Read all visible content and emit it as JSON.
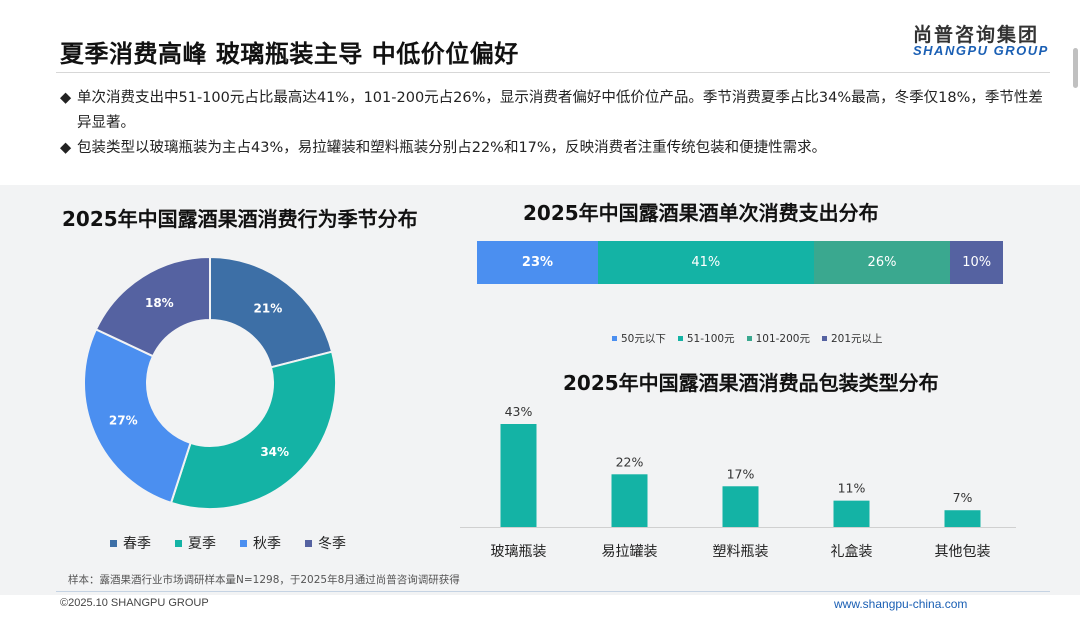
{
  "header": {
    "title": "夏季消费高峰 玻璃瓶装主导 中低价位偏好",
    "brand_cn": "尚普咨询集团",
    "brand_en": "SHANGPU GROUP"
  },
  "bullets": [
    {
      "symbol": "◆",
      "text": "单次消费支出中51-100元占比最高达41%，101-200元占26%，显示消费者偏好中低价位产品。季节消费夏季占比34%最高，冬季仅18%，季节性差异显著。"
    },
    {
      "symbol": "◆",
      "text": "包装类型以玻璃瓶装为主占43%，易拉罐装和塑料瓶装分别占22%和17%，反映消费者注重传统包装和便捷性需求。"
    }
  ],
  "chart_data": [
    {
      "type": "pie",
      "title": "2025年中国露酒果酒消费行为季节分布",
      "categories": [
        "春季",
        "夏季",
        "秋季",
        "冬季"
      ],
      "values": [
        21,
        34,
        27,
        18
      ],
      "labels": [
        "21%",
        "34%",
        "27%",
        "18%"
      ],
      "colors": [
        "#3d6fa6",
        "#14b3a5",
        "#4b8ff0",
        "#5562a1"
      ],
      "donut": true,
      "legend": "bottom"
    },
    {
      "type": "bar",
      "stacked": true,
      "orientation": "horizontal",
      "title": "2025年中国露酒果酒单次消费支出分布",
      "series": [
        {
          "name": "50元以下",
          "values": [
            23
          ],
          "label": "23%"
        },
        {
          "name": "51-100元",
          "values": [
            41
          ],
          "label": "41%"
        },
        {
          "name": "101-200元",
          "values": [
            26
          ],
          "label": "26%"
        },
        {
          "name": "201元以上",
          "values": [
            10
          ],
          "label": "10%"
        }
      ],
      "colors": [
        "#4b8ff0",
        "#14b3a5",
        "#3aa88f",
        "#5562a1"
      ],
      "legend": "bottom"
    },
    {
      "type": "bar",
      "title": "2025年中国露酒果酒消费品包装类型分布",
      "categories": [
        "玻璃瓶装",
        "易拉罐装",
        "塑料瓶装",
        "礼盒装",
        "其他包装"
      ],
      "values": [
        43,
        22,
        17,
        11,
        7
      ],
      "labels": [
        "43%",
        "22%",
        "17%",
        "11%",
        "7%"
      ],
      "color": "#14b3a5"
    }
  ],
  "footnote": "样本：露酒果酒行业市场调研样本量N=1298，于2025年8月通过尚普咨询调研获得",
  "footer": {
    "copyright": "©2025.10 SHANGPU GROUP",
    "website": "www.shangpu-china.com"
  }
}
